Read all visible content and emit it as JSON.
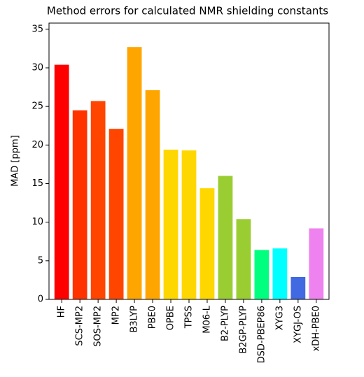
{
  "chart_data": {
    "type": "bar",
    "title": "Method errors for calculated NMR shielding constants",
    "y_label": "MAD [ppm]",
    "categories": [
      "HF",
      "SCS-MP2",
      "SOS-MP2",
      "MP2",
      "B3LYP",
      "PBE0",
      "OPBE",
      "TPSS",
      "M06-L",
      "B2-PLYP",
      "B2GP-PLYP",
      "DSD-PBEP86",
      "XYG3",
      "XYGJ-OS",
      "xDH-PBE0"
    ],
    "values": [
      30.4,
      24.5,
      25.7,
      22.1,
      32.7,
      27.1,
      19.4,
      19.3,
      14.4,
      16.0,
      10.4,
      6.4,
      6.6,
      2.9,
      9.2
    ],
    "colors": [
      "#ff0000",
      "#ff3300",
      "#ff4500",
      "#ff4500",
      "#ffa500",
      "#ffa500",
      "#ffd700",
      "#ffd700",
      "#ffd700",
      "#9acd32",
      "#9acd32",
      "#00ff7f",
      "#00ffff",
      "#4169e1",
      "#ee82ee"
    ],
    "ylim": [
      0,
      35.8
    ],
    "yticks": [
      0,
      5,
      10,
      15,
      20,
      25,
      30,
      35
    ],
    "grid": false
  }
}
